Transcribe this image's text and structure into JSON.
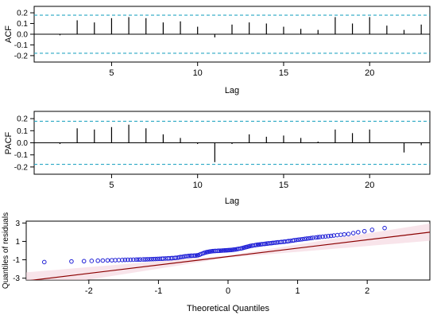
{
  "chart_data": [
    {
      "type": "bar",
      "subtype": "acf",
      "xlabel": "Lag",
      "ylabel": "ACF",
      "xlim": [
        0.5,
        23.5
      ],
      "ylim": [
        -0.26,
        0.26
      ],
      "xticks": [
        "5",
        "10",
        "15",
        "20"
      ],
      "yticks": [
        "-0.2",
        "-0.1",
        "0.0",
        "0.1",
        "0.2"
      ],
      "ci": 0.178,
      "lags": [
        2,
        3,
        4,
        5,
        6,
        7,
        8,
        9,
        10,
        11,
        12,
        13,
        14,
        15,
        16,
        17,
        18,
        19,
        20,
        21,
        22,
        23
      ],
      "values": [
        -0.01,
        0.13,
        0.11,
        0.15,
        0.16,
        0.15,
        0.11,
        0.12,
        0.07,
        -0.03,
        0.09,
        0.11,
        0.1,
        0.07,
        0.05,
        0.04,
        0.16,
        0.1,
        0.16,
        0.08,
        0.04,
        0.09
      ]
    },
    {
      "type": "bar",
      "subtype": "pacf",
      "xlabel": "Lag",
      "ylabel": "PACF",
      "xlim": [
        0.5,
        23.5
      ],
      "ylim": [
        -0.26,
        0.26
      ],
      "xticks": [
        "5",
        "10",
        "15",
        "20"
      ],
      "yticks": [
        "-0.2",
        "-0.1",
        "0.0",
        "0.1",
        "0.2"
      ],
      "ci": 0.178,
      "lags": [
        2,
        3,
        4,
        5,
        6,
        7,
        8,
        9,
        10,
        11,
        12,
        13,
        14,
        15,
        16,
        17,
        18,
        19,
        20,
        21,
        22,
        23
      ],
      "values": [
        -0.01,
        0.12,
        0.11,
        0.13,
        0.15,
        0.12,
        0.07,
        0.04,
        -0.01,
        -0.16,
        -0.01,
        0.07,
        0.05,
        0.06,
        0.04,
        0.01,
        0.11,
        0.08,
        0.11,
        0.0,
        -0.08,
        -0.02
      ]
    },
    {
      "type": "scatter",
      "subtype": "qq",
      "xlabel": "Theoretical Quantiles",
      "ylabel": "Quantiles of residuals",
      "xlim": [
        -2.9,
        2.9
      ],
      "ylim": [
        -3.2,
        3.2
      ],
      "xticks": [
        "-2",
        "-1",
        "0",
        "1",
        "2"
      ],
      "yticks": [
        "-3",
        "-1",
        "1",
        "3"
      ],
      "line": {
        "x": [
          -2.9,
          2.9
        ],
        "y": [
          -3.3,
          2.0
        ],
        "color": "#8b0000"
      },
      "band_color": "#f3d2dc",
      "point_color": "#1f1fd6",
      "points": {
        "x": [
          -2.64,
          -2.25,
          -2.07,
          -1.96,
          -1.87,
          -1.8,
          -1.73,
          -1.67,
          -1.62,
          -1.57,
          -1.52,
          -1.48,
          -1.44,
          -1.4,
          -1.36,
          -1.32,
          -1.29,
          -1.26,
          -1.22,
          -1.19,
          -1.16,
          -1.13,
          -1.1,
          -1.07,
          -1.04,
          -1.01,
          -0.98,
          -0.95,
          -0.93,
          -0.9,
          -0.87,
          -0.85,
          -0.82,
          -0.8,
          -0.77,
          -0.75,
          -0.72,
          -0.7,
          -0.68,
          -0.65,
          -0.63,
          -0.61,
          -0.58,
          -0.56,
          -0.54,
          -0.52,
          -0.49,
          -0.47,
          -0.45,
          -0.43,
          -0.41,
          -0.39,
          -0.36,
          -0.34,
          -0.32,
          -0.3,
          -0.28,
          -0.26,
          -0.24,
          -0.22,
          -0.2,
          -0.18,
          -0.15,
          -0.13,
          -0.11,
          -0.09,
          -0.07,
          -0.05,
          -0.03,
          -0.01,
          0.01,
          0.03,
          0.05,
          0.07,
          0.09,
          0.11,
          0.13,
          0.15,
          0.18,
          0.2,
          0.22,
          0.24,
          0.26,
          0.28,
          0.3,
          0.32,
          0.34,
          0.36,
          0.39,
          0.41,
          0.43,
          0.45,
          0.47,
          0.49,
          0.52,
          0.54,
          0.56,
          0.58,
          0.61,
          0.63,
          0.65,
          0.68,
          0.7,
          0.72,
          0.75,
          0.77,
          0.8,
          0.82,
          0.85,
          0.87,
          0.9,
          0.93,
          0.95,
          0.98,
          1.01,
          1.04,
          1.07,
          1.1,
          1.13,
          1.16,
          1.19,
          1.22,
          1.26,
          1.29,
          1.32,
          1.36,
          1.4,
          1.44,
          1.48,
          1.52,
          1.57,
          1.62,
          1.67,
          1.73,
          1.8,
          1.87,
          1.96,
          2.07,
          2.25
        ],
        "y": [
          -1.25,
          -1.18,
          -1.15,
          -1.12,
          -1.1,
          -1.08,
          -1.06,
          -1.05,
          -1.04,
          -1.03,
          -1.02,
          -1.01,
          -1.0,
          -1.0,
          -0.99,
          -0.98,
          -0.98,
          -0.97,
          -0.96,
          -0.96,
          -0.95,
          -0.94,
          -0.93,
          -0.92,
          -0.91,
          -0.9,
          -0.89,
          -0.88,
          -0.87,
          -0.86,
          -0.85,
          -0.84,
          -0.83,
          -0.82,
          -0.8,
          -0.78,
          -0.76,
          -0.73,
          -0.7,
          -0.67,
          -0.64,
          -0.62,
          -0.6,
          -0.58,
          -0.57,
          -0.56,
          -0.55,
          -0.54,
          -0.52,
          -0.5,
          -0.45,
          -0.38,
          -0.3,
          -0.24,
          -0.2,
          -0.16,
          -0.13,
          -0.1,
          -0.08,
          -0.06,
          -0.05,
          -0.04,
          -0.03,
          -0.02,
          -0.01,
          0.0,
          0.01,
          0.02,
          0.03,
          0.04,
          0.05,
          0.06,
          0.07,
          0.09,
          0.11,
          0.13,
          0.16,
          0.19,
          0.22,
          0.26,
          0.3,
          0.34,
          0.38,
          0.42,
          0.46,
          0.5,
          0.53,
          0.56,
          0.59,
          0.62,
          0.64,
          0.66,
          0.68,
          0.7,
          0.72,
          0.74,
          0.76,
          0.78,
          0.8,
          0.82,
          0.84,
          0.86,
          0.88,
          0.9,
          0.92,
          0.94,
          0.96,
          0.98,
          1.0,
          1.03,
          1.06,
          1.09,
          1.12,
          1.15,
          1.18,
          1.21,
          1.24,
          1.27,
          1.3,
          1.33,
          1.36,
          1.39,
          1.42,
          1.45,
          1.48,
          1.51,
          1.54,
          1.57,
          1.6,
          1.64,
          1.68,
          1.72,
          1.76,
          1.8,
          1.9,
          2.0,
          2.1,
          2.25,
          2.45
        ]
      }
    }
  ],
  "colors": {
    "ci_line": "#2aa8c4",
    "axis": "#000000"
  }
}
